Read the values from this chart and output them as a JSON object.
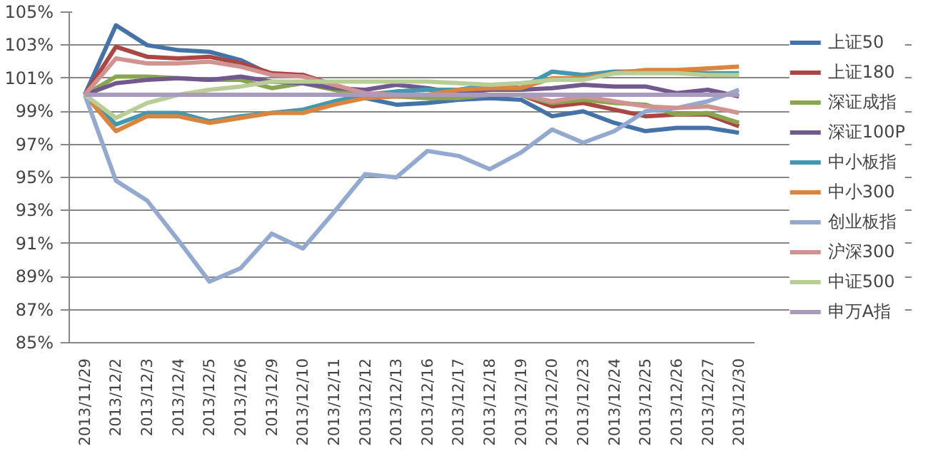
{
  "chart_data": {
    "type": "line",
    "categories": [
      "2013/11/29",
      "2013/12/2",
      "2013/12/3",
      "2013/12/4",
      "2013/12/5",
      "2013/12/6",
      "2013/12/9",
      "2013/12/10",
      "2013/12/11",
      "2013/12/12",
      "2013/12/13",
      "2013/12/16",
      "2013/12/17",
      "2013/12/18",
      "2013/12/19",
      "2013/12/20",
      "2013/12/23",
      "2013/12/24",
      "2013/12/25",
      "2013/12/26",
      "2013/12/27",
      "2013/12/30"
    ],
    "series": [
      {
        "name": "上证50",
        "color": "#4572a7",
        "values": [
          100,
          104.2,
          103,
          102.7,
          102.6,
          102.1,
          101.2,
          101.2,
          100.5,
          99.8,
          99.4,
          99.5,
          99.7,
          99.8,
          99.7,
          98.7,
          99,
          98.3,
          97.8,
          98,
          98,
          97.7
        ]
      },
      {
        "name": "上证180",
        "color": "#aa4643",
        "values": [
          100,
          102.9,
          102.3,
          102.2,
          102.3,
          101.9,
          101.3,
          101.2,
          100.6,
          100,
          99.9,
          99.9,
          100,
          100,
          100,
          99.3,
          99.5,
          99.1,
          98.7,
          98.8,
          98.8,
          98.1
        ]
      },
      {
        "name": "深证成指",
        "color": "#89a54e",
        "values": [
          100,
          101.1,
          101.1,
          101,
          100.9,
          100.9,
          100.4,
          100.7,
          100.3,
          99.9,
          99.9,
          99.8,
          99.8,
          100,
          100,
          99.5,
          99.7,
          99.5,
          99.4,
          98.8,
          98.9,
          98.3
        ]
      },
      {
        "name": "深证100P",
        "color": "#71588f",
        "values": [
          100,
          100.7,
          100.9,
          101,
          100.9,
          101.1,
          100.8,
          100.7,
          100.4,
          100.3,
          100.6,
          100.4,
          100.1,
          100.3,
          100.3,
          100.4,
          100.6,
          100.5,
          100.5,
          100.1,
          100.3,
          99.9
        ]
      },
      {
        "name": "中小板指",
        "color": "#4198af",
        "values": [
          100,
          98.2,
          98.9,
          98.9,
          98.4,
          98.7,
          98.9,
          99.1,
          99.6,
          100,
          100.2,
          100.3,
          100.3,
          100.6,
          100.4,
          101.4,
          101.2,
          101.4,
          101.4,
          101.4,
          101.3,
          101.3
        ]
      },
      {
        "name": "中小300",
        "color": "#db843d",
        "values": [
          100,
          97.8,
          98.7,
          98.7,
          98.3,
          98.6,
          98.9,
          98.9,
          99.4,
          99.8,
          99.9,
          100,
          100.3,
          100.4,
          100.4,
          101,
          101,
          101.3,
          101.5,
          101.5,
          101.6,
          101.7
        ]
      },
      {
        "name": "创业板指",
        "color": "#93a9cf",
        "values": [
          100,
          94.8,
          93.6,
          91.2,
          88.7,
          89.5,
          91.6,
          90.7,
          92.9,
          95.2,
          95,
          96.6,
          96.3,
          95.5,
          96.5,
          97.9,
          97.1,
          97.8,
          99,
          99.2,
          99.6,
          100.3
        ]
      },
      {
        "name": "沪深300",
        "color": "#d19392",
        "values": [
          100,
          102.2,
          101.9,
          101.9,
          102,
          101.7,
          101.2,
          101.1,
          100.6,
          100.1,
          100,
          100,
          100,
          100,
          100,
          99.6,
          99.9,
          99.6,
          99.3,
          99.2,
          99.3,
          98.9
        ]
      },
      {
        "name": "中证500",
        "color": "#b9cd96",
        "values": [
          100,
          98.6,
          99.5,
          100,
          100.3,
          100.5,
          100.8,
          100.8,
          100.8,
          100.8,
          100.8,
          100.8,
          100.7,
          100.6,
          100.7,
          100.9,
          100.9,
          101.3,
          101.3,
          101.3,
          101.2,
          101.2
        ]
      },
      {
        "name": "申万A指",
        "color": "#a99bbd",
        "values": [
          100,
          100,
          100,
          100,
          100,
          100,
          100,
          100,
          100,
          100,
          100,
          100,
          100,
          100,
          100,
          100,
          100,
          100,
          100,
          100,
          100,
          100
        ]
      }
    ],
    "ylim": [
      85,
      105
    ],
    "yticks": [
      {
        "value": 85,
        "label": "85%"
      },
      {
        "value": 87,
        "label": "87%"
      },
      {
        "value": 89,
        "label": "89%"
      },
      {
        "value": 91,
        "label": "91%"
      },
      {
        "value": 93,
        "label": "93%"
      },
      {
        "value": 95,
        "label": "95%"
      },
      {
        "value": 97,
        "label": "97%"
      },
      {
        "value": 99,
        "label": "99%"
      },
      {
        "value": 101,
        "label": "101%"
      },
      {
        "value": 103,
        "label": "103%"
      },
      {
        "value": 105,
        "label": "105%"
      }
    ],
    "grid": "y",
    "legend": "right",
    "marker": "none",
    "line_style": "solid"
  }
}
